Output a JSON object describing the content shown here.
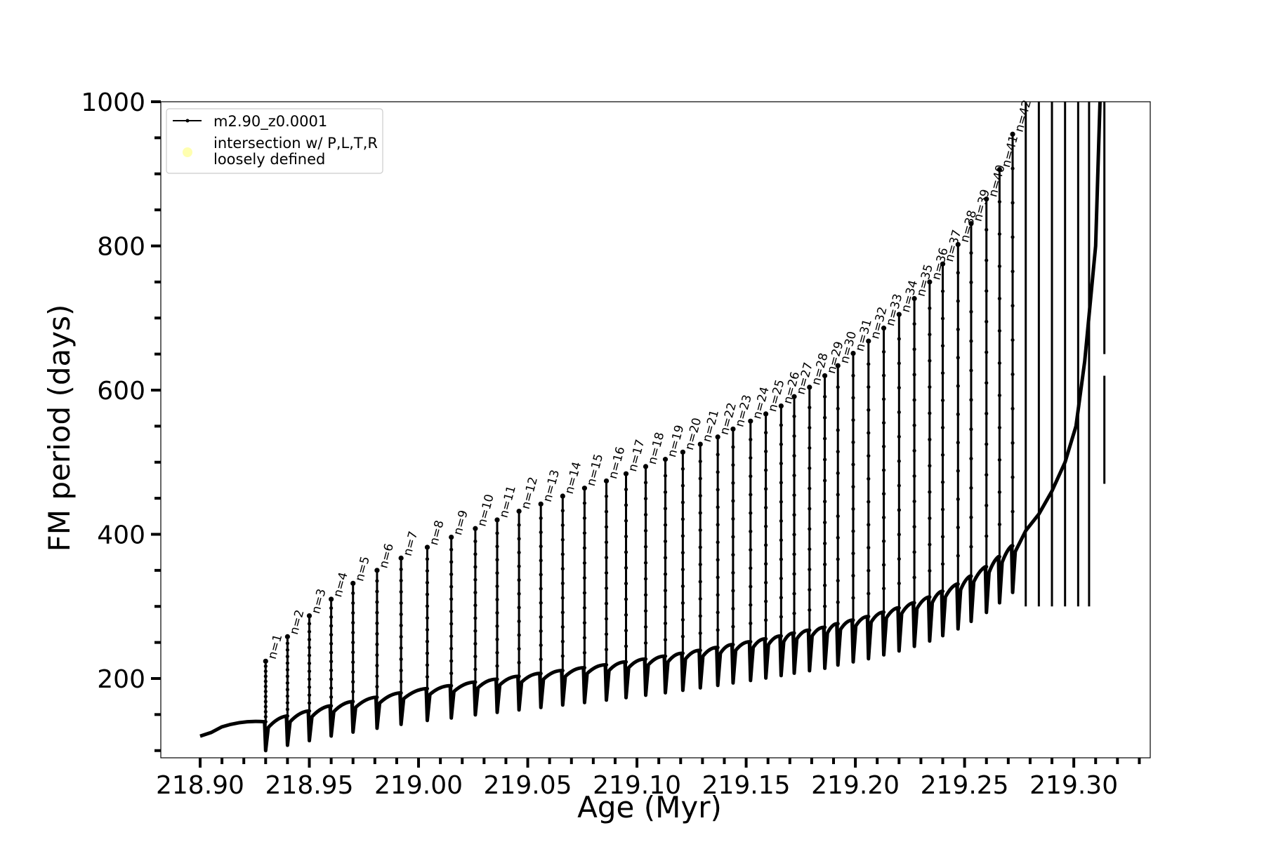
{
  "chart_data": {
    "type": "line",
    "xlabel": "Age (Myr)",
    "ylabel": "FM period (days)",
    "xlim": [
      218.882,
      219.335
    ],
    "ylim": [
      90,
      1000
    ],
    "xticks": [
      "218.90",
      "218.95",
      "219.00",
      "219.05",
      "219.10",
      "219.15",
      "219.20",
      "219.25",
      "219.30"
    ],
    "yticks": [
      "200",
      "400",
      "600",
      "800",
      "1000"
    ],
    "grid": false,
    "legend": {
      "placement": "top-left",
      "entries": [
        {
          "label": "m2.90_z0.0001",
          "marker": "line-dot",
          "color": "#000000"
        },
        {
          "label": "intersection w/ P,L,T,R\nloosely defined",
          "marker": "circle",
          "color": "#ffffb0"
        }
      ]
    },
    "series": [
      {
        "name": "m2.90_z0.0001",
        "color": "#000000",
        "description_values": "pulse-by-pulse FM period",
        "pulses": [
          {
            "n": "n=1",
            "age": 218.93,
            "base": 140,
            "peak": 224
          },
          {
            "n": "n=2",
            "age": 218.94,
            "base": 148,
            "peak": 258
          },
          {
            "n": "n=3",
            "age": 218.95,
            "base": 155,
            "peak": 287
          },
          {
            "n": "n=4",
            "age": 218.96,
            "base": 162,
            "peak": 310
          },
          {
            "n": "n=5",
            "age": 218.97,
            "base": 168,
            "peak": 332
          },
          {
            "n": "n=6",
            "age": 218.981,
            "base": 174,
            "peak": 350
          },
          {
            "n": "n=7",
            "age": 218.992,
            "base": 180,
            "peak": 367
          },
          {
            "n": "n=8",
            "age": 219.004,
            "base": 186,
            "peak": 382
          },
          {
            "n": "n=9",
            "age": 219.015,
            "base": 190,
            "peak": 396
          },
          {
            "n": "n=10",
            "age": 219.026,
            "base": 195,
            "peak": 408
          },
          {
            "n": "n=11",
            "age": 219.036,
            "base": 199,
            "peak": 420
          },
          {
            "n": "n=12",
            "age": 219.046,
            "base": 203,
            "peak": 432
          },
          {
            "n": "n=13",
            "age": 219.056,
            "base": 207,
            "peak": 442
          },
          {
            "n": "n=14",
            "age": 219.066,
            "base": 211,
            "peak": 453
          },
          {
            "n": "n=15",
            "age": 219.076,
            "base": 215,
            "peak": 464
          },
          {
            "n": "n=16",
            "age": 219.086,
            "base": 219,
            "peak": 474
          },
          {
            "n": "n=17",
            "age": 219.095,
            "base": 223,
            "peak": 484
          },
          {
            "n": "n=18",
            "age": 219.104,
            "base": 227,
            "peak": 494
          },
          {
            "n": "n=19",
            "age": 219.113,
            "base": 231,
            "peak": 504
          },
          {
            "n": "n=20",
            "age": 219.121,
            "base": 235,
            "peak": 514
          },
          {
            "n": "n=21",
            "age": 219.129,
            "base": 239,
            "peak": 525
          },
          {
            "n": "n=22",
            "age": 219.137,
            "base": 243,
            "peak": 535
          },
          {
            "n": "n=23",
            "age": 219.144,
            "base": 247,
            "peak": 546
          },
          {
            "n": "n=24",
            "age": 219.152,
            "base": 251,
            "peak": 557
          },
          {
            "n": "n=25",
            "age": 219.159,
            "base": 255,
            "peak": 567
          },
          {
            "n": "n=26",
            "age": 219.166,
            "base": 259,
            "peak": 578
          },
          {
            "n": "n=27",
            "age": 219.172,
            "base": 263,
            "peak": 591
          },
          {
            "n": "n=28",
            "age": 219.179,
            "base": 267,
            "peak": 604
          },
          {
            "n": "n=29",
            "age": 219.186,
            "base": 271,
            "peak": 620
          },
          {
            "n": "n=30",
            "age": 219.192,
            "base": 276,
            "peak": 634
          },
          {
            "n": "n=31",
            "age": 219.199,
            "base": 281,
            "peak": 651
          },
          {
            "n": "n=32",
            "age": 219.206,
            "base": 286,
            "peak": 668
          },
          {
            "n": "n=33",
            "age": 219.213,
            "base": 292,
            "peak": 686
          },
          {
            "n": "n=34",
            "age": 219.22,
            "base": 298,
            "peak": 705
          },
          {
            "n": "n=35",
            "age": 219.227,
            "base": 305,
            "peak": 727
          },
          {
            "n": "n=36",
            "age": 219.234,
            "base": 313,
            "peak": 750
          },
          {
            "n": "n=37",
            "age": 219.24,
            "base": 321,
            "peak": 775
          },
          {
            "n": "n=38",
            "age": 219.247,
            "base": 331,
            "peak": 802
          },
          {
            "n": "n=39",
            "age": 219.253,
            "base": 342,
            "peak": 831
          },
          {
            "n": "n=40",
            "age": 219.26,
            "base": 355,
            "peak": 865
          },
          {
            "n": "n=41",
            "age": 219.266,
            "base": 369,
            "peak": 906
          },
          {
            "n": "n=42",
            "age": 219.272,
            "base": 384,
            "peak": 955
          }
        ],
        "final_rise": [
          {
            "age": 219.278,
            "value": 405
          },
          {
            "age": 219.284,
            "value": 428
          },
          {
            "age": 219.29,
            "value": 460
          },
          {
            "age": 219.296,
            "value": 500
          },
          {
            "age": 219.301,
            "value": 550
          },
          {
            "age": 219.305,
            "value": 640
          },
          {
            "age": 219.31,
            "value": 800
          },
          {
            "age": 219.312,
            "value": 1000
          }
        ]
      }
    ]
  }
}
